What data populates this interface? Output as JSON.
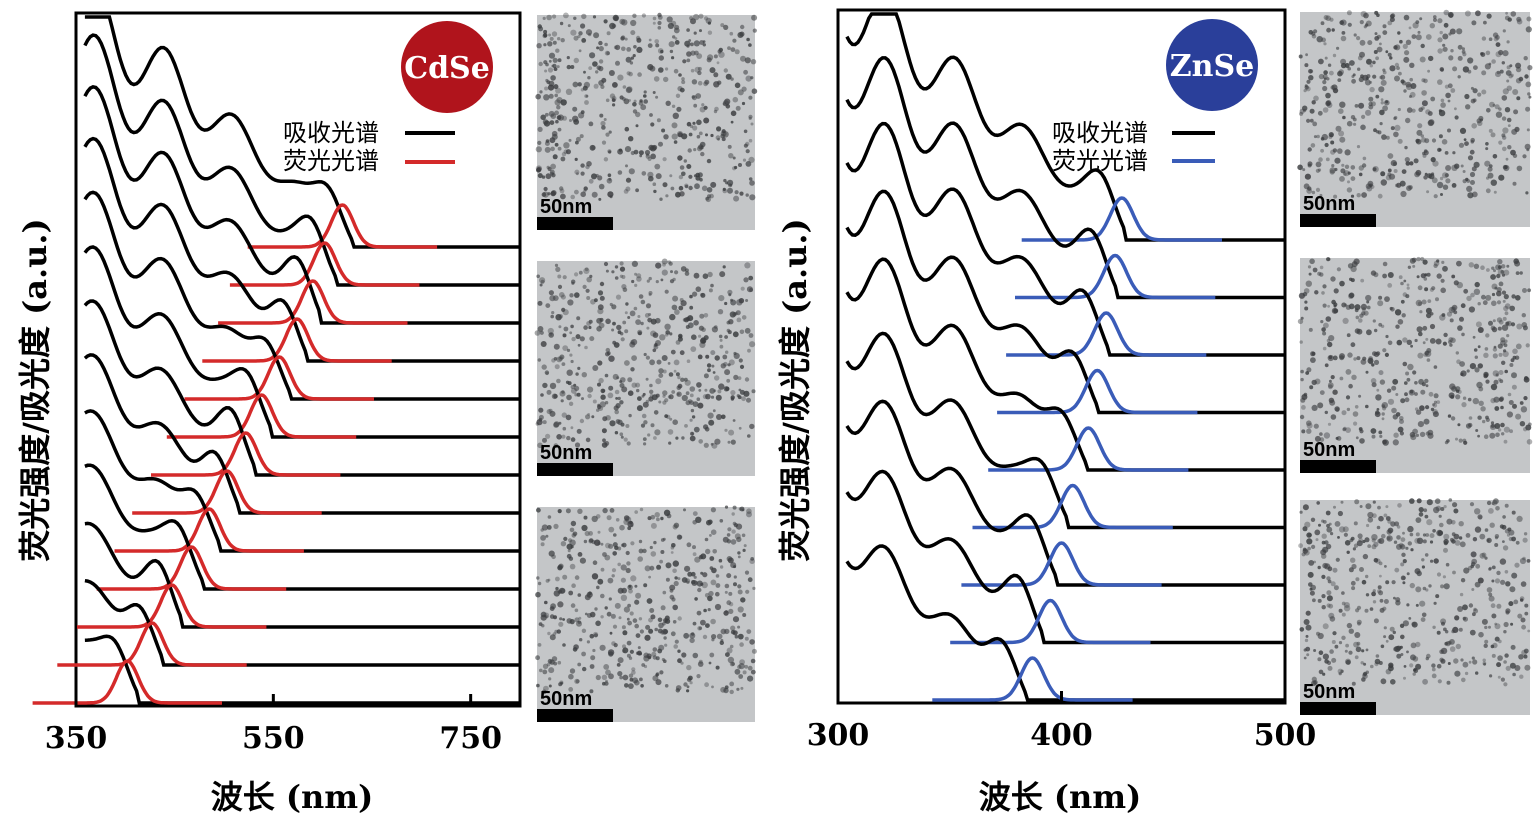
{
  "colors": {
    "absorption": "#000000",
    "cdse_fluorescence": "#d42a2a",
    "znse_fluorescence": "#3a5cb8",
    "cdse_badge": "#b0141c",
    "znse_badge": "#2a3f9a",
    "tem_background": "#c4c6c8"
  },
  "y_axis_title": "荧光强度/吸光度 (a.u.)",
  "legend": {
    "absorption": "吸收光谱",
    "fluorescence": "荧光光谱"
  },
  "scale_bar_label": "50nm",
  "chart_data": [
    {
      "type": "line",
      "badge": "CdSe",
      "xlabel": "波长 (nm)",
      "ylabel": "荧光强度/吸光度 (a.u.)",
      "xlim": [
        350,
        800
      ],
      "xticks": [
        "350",
        "550",
        "750"
      ],
      "tick_values": [
        350,
        550,
        750
      ],
      "fluorescence_peaks_nm": [
        620,
        602,
        590,
        574,
        556,
        538,
        522,
        503,
        485,
        467,
        447,
        427,
        402
      ],
      "absorption_first_peak_nm": [
        606,
        590,
        575,
        560,
        543,
        525,
        508,
        491,
        472,
        455,
        434,
        414,
        390
      ],
      "tem_panels": 3
    },
    {
      "type": "line",
      "badge": "ZnSe",
      "xlabel": "波长 (nm)",
      "ylabel": "荧光强度/吸光度 (a.u.)",
      "xlim": [
        300,
        500
      ],
      "xticks": [
        "300",
        "400",
        "500"
      ],
      "tick_values": [
        300,
        400,
        500
      ],
      "fluorescence_peaks_nm": [
        427,
        424,
        420,
        416,
        412,
        405,
        400,
        395,
        387
      ],
      "absorption_first_peak_nm": [
        418,
        414,
        410,
        405,
        400,
        392,
        387,
        381,
        373
      ],
      "tem_panels": 3
    }
  ]
}
